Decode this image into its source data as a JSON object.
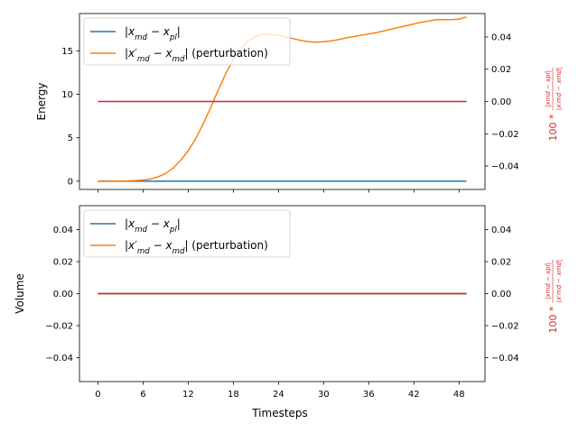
{
  "figure": {
    "xlabel": "Timesteps"
  },
  "colors": {
    "blue": "#1f77b4",
    "orange": "#ff7f0e",
    "red": "#d62728",
    "axis": "#000000"
  },
  "chart_data": [
    {
      "type": "line",
      "ylabel": "Energy",
      "y2label": "100 * |x_md − x_pl| / |x'_md − x_md|",
      "xlim": [
        -2.45,
        51.45
      ],
      "ylim": [
        -0.95,
        19.3
      ],
      "y2lim": [
        -0.0545,
        0.0545
      ],
      "xticks": [
        0,
        6,
        12,
        18,
        24,
        30,
        36,
        42,
        48
      ],
      "yticks": [
        0,
        5,
        10,
        15
      ],
      "y2ticks": [
        -0.04,
        -0.02,
        0.0,
        0.02,
        0.04
      ],
      "show_xticklabels": false,
      "legend": "upper left",
      "series": [
        {
          "name": "|x_md − x_pl|",
          "axis": "left",
          "color": "blue",
          "x": [
            0,
            49
          ],
          "y": [
            0,
            0
          ]
        },
        {
          "name": "|x'_md − x_md| (perturbation)",
          "axis": "left",
          "color": "orange",
          "x": [
            0,
            1,
            2,
            3,
            4,
            5,
            6,
            7,
            8,
            9,
            10,
            11,
            12,
            13,
            14,
            15,
            16,
            17,
            18,
            19,
            20,
            21,
            22,
            23,
            24,
            25,
            26,
            27,
            28,
            29,
            30,
            31,
            32,
            33,
            34,
            35,
            36,
            37,
            38,
            39,
            40,
            41,
            42,
            43,
            44,
            45,
            46,
            47,
            48,
            49
          ],
          "y": [
            0.0,
            0.0,
            0.0,
            0.02,
            0.04,
            0.07,
            0.13,
            0.25,
            0.5,
            0.9,
            1.5,
            2.4,
            3.5,
            4.9,
            6.6,
            8.5,
            10.5,
            12.4,
            14.0,
            15.3,
            16.2,
            16.7,
            16.9,
            16.9,
            16.8,
            16.6,
            16.4,
            16.2,
            16.05,
            16.0,
            16.05,
            16.15,
            16.3,
            16.5,
            16.65,
            16.8,
            16.95,
            17.1,
            17.3,
            17.5,
            17.7,
            17.9,
            18.1,
            18.3,
            18.45,
            18.6,
            18.6,
            18.6,
            18.65,
            18.9
          ]
        },
        {
          "name": "",
          "axis": "right",
          "color": "red",
          "x": [
            0,
            49
          ],
          "y": [
            0.0,
            0.0
          ]
        }
      ]
    },
    {
      "type": "line",
      "ylabel": "Volume",
      "y2label": "100 * |x_md − x_pl| / |x'_md − x_md|",
      "xlim": [
        -2.45,
        51.45
      ],
      "ylim": [
        -0.055,
        0.055
      ],
      "y2lim": [
        -0.055,
        0.055
      ],
      "xticks": [
        0,
        6,
        12,
        18,
        24,
        30,
        36,
        42,
        48
      ],
      "yticks": [
        -0.04,
        -0.02,
        0.0,
        0.02,
        0.04
      ],
      "y2ticks": [
        -0.04,
        -0.02,
        0.0,
        0.02,
        0.04
      ],
      "show_xticklabels": true,
      "legend": "upper left",
      "series": [
        {
          "name": "|x_md − x_pl|",
          "axis": "left",
          "color": "blue",
          "x": [
            0,
            49
          ],
          "y": [
            0,
            0
          ]
        },
        {
          "name": "|x'_md − x_md| (perturbation)",
          "axis": "left",
          "color": "orange",
          "x": [
            0,
            49
          ],
          "y": [
            0,
            0
          ]
        },
        {
          "name": "",
          "axis": "right",
          "color": "red",
          "x": [
            0,
            49
          ],
          "y": [
            0.0,
            0.0
          ]
        }
      ]
    }
  ]
}
